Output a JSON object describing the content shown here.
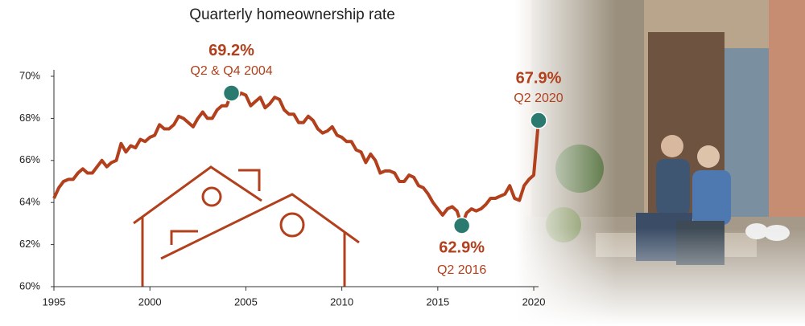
{
  "chart_data": {
    "type": "line",
    "title": "Quarterly homeownership rate",
    "x": [
      1995,
      1995.25,
      1995.5,
      1995.75,
      1996,
      1996.25,
      1996.5,
      1996.75,
      1997,
      1997.25,
      1997.5,
      1997.75,
      1998,
      1998.25,
      1998.5,
      1998.75,
      1999,
      1999.25,
      1999.5,
      1999.75,
      2000,
      2000.25,
      2000.5,
      2000.75,
      2001,
      2001.25,
      2001.5,
      2001.75,
      2002,
      2002.25,
      2002.5,
      2002.75,
      2003,
      2003.25,
      2003.5,
      2003.75,
      2004,
      2004.25,
      2004.5,
      2004.75,
      2005,
      2005.25,
      2005.5,
      2005.75,
      2006,
      2006.25,
      2006.5,
      2006.75,
      2007,
      2007.25,
      2007.5,
      2007.75,
      2008,
      2008.25,
      2008.5,
      2008.75,
      2009,
      2009.25,
      2009.5,
      2009.75,
      2010,
      2010.25,
      2010.5,
      2010.75,
      2011,
      2011.25,
      2011.5,
      2011.75,
      2012,
      2012.25,
      2012.5,
      2012.75,
      2013,
      2013.25,
      2013.5,
      2013.75,
      2014,
      2014.25,
      2014.5,
      2014.75,
      2015,
      2015.25,
      2015.5,
      2015.75,
      2016,
      2016.25,
      2016.5,
      2016.75,
      2017,
      2017.25,
      2017.5,
      2017.75,
      2018,
      2018.25,
      2018.5,
      2018.75,
      2019,
      2019.25,
      2019.5,
      2019.75,
      2020,
      2020.25
    ],
    "series": [
      {
        "color": "#b2401d",
        "values": [
          64.2,
          64.7,
          65.0,
          65.1,
          65.1,
          65.4,
          65.6,
          65.4,
          65.4,
          65.7,
          66.0,
          65.7,
          65.9,
          66.0,
          66.8,
          66.4,
          66.7,
          66.6,
          67.0,
          66.9,
          67.1,
          67.2,
          67.7,
          67.5,
          67.5,
          67.7,
          68.1,
          68.0,
          67.8,
          67.6,
          68.0,
          68.3,
          68.0,
          68.0,
          68.4,
          68.6,
          68.6,
          69.2,
          69.0,
          69.2,
          69.1,
          68.6,
          68.8,
          69.0,
          68.5,
          68.7,
          69.0,
          68.9,
          68.4,
          68.2,
          68.2,
          67.8,
          67.8,
          68.1,
          67.9,
          67.5,
          67.3,
          67.4,
          67.6,
          67.2,
          67.1,
          66.9,
          66.9,
          66.5,
          66.4,
          65.9,
          66.3,
          66.0,
          65.4,
          65.5,
          65.5,
          65.4,
          65.0,
          65.0,
          65.3,
          65.2,
          64.8,
          64.7,
          64.4,
          64.0,
          63.7,
          63.4,
          63.7,
          63.8,
          63.6,
          62.9,
          63.5,
          63.7,
          63.6,
          63.7,
          63.9,
          64.2,
          64.2,
          64.3,
          64.4,
          64.8,
          64.2,
          64.1,
          64.8,
          65.1,
          65.3,
          67.9
        ]
      }
    ],
    "highlights": [
      {
        "x": 2004.25,
        "value": 69.2,
        "value_label": "69.2%",
        "label": "Q2 & Q4 2004"
      },
      {
        "x": 2016.25,
        "value": 62.9,
        "value_label": "62.9%",
        "label": "Q2 2016"
      },
      {
        "x": 2020.25,
        "value": 67.9,
        "value_label": "67.9%",
        "label": "Q2 2020"
      }
    ],
    "highlight_color": "#2a7a70",
    "xlim": [
      1995,
      2020.25
    ],
    "ylim": [
      60,
      70
    ],
    "xticks": [
      1995,
      2000,
      2005,
      2010,
      2015,
      2020
    ],
    "yticks": [
      {
        "value": 60,
        "label": "60%"
      },
      {
        "value": 62,
        "label": "62%"
      },
      {
        "value": 64,
        "label": "64%"
      },
      {
        "value": 66,
        "label": "66%"
      },
      {
        "value": 68,
        "label": "68%"
      },
      {
        "value": 70,
        "label": "70%"
      }
    ]
  }
}
